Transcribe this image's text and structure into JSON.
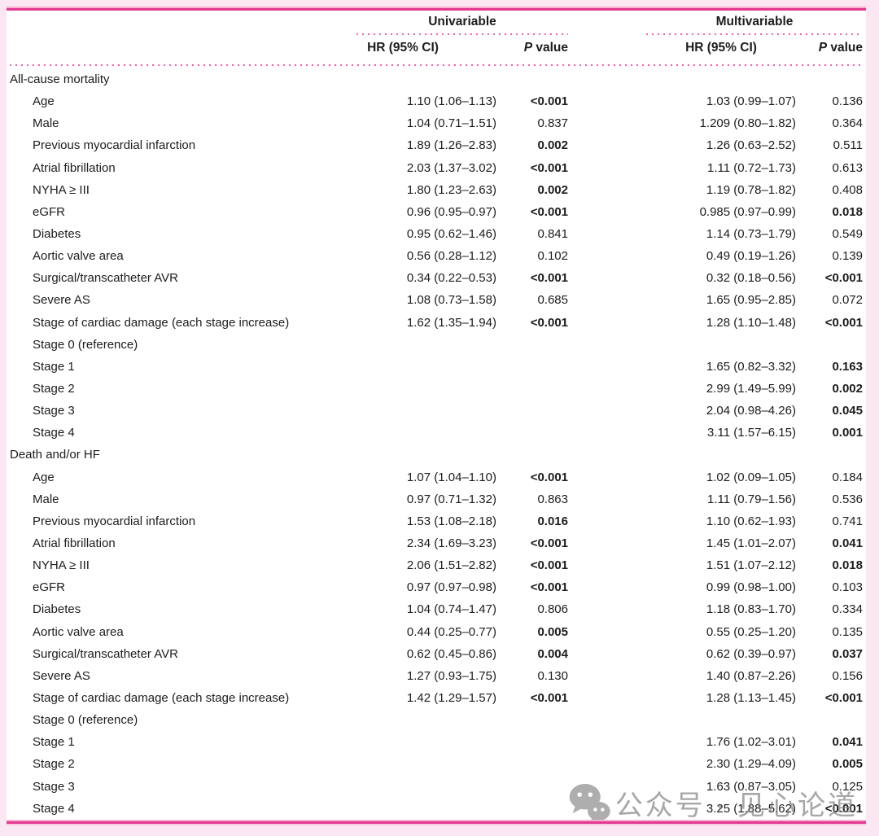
{
  "colors": {
    "accent_pink": "#e23a90",
    "dot_pink": "#f55fa9",
    "page_bg": "#fbe7f1",
    "text": "#1c1c1c",
    "watermark_gray": "#7d7d7d"
  },
  "table": {
    "group_headers": [
      "Univariable",
      "Multivariable"
    ],
    "col_headers": {
      "hr": "HR (95% CI)",
      "p_italic": "P",
      "p_rest": " value"
    },
    "sections": [
      {
        "title": "All-cause mortality",
        "rows": [
          {
            "label": "Age",
            "uni_hr": "1.10 (1.06–1.13)",
            "uni_p": "<0.001",
            "uni_p_bold": true,
            "mv_hr": "1.03 (0.99–1.07)",
            "mv_p": "0.136",
            "mv_p_bold": false
          },
          {
            "label": "Male",
            "uni_hr": "1.04 (0.71–1.51)",
            "uni_p": "0.837",
            "uni_p_bold": false,
            "mv_hr": "1.209 (0.80–1.82)",
            "mv_p": "0.364",
            "mv_p_bold": false
          },
          {
            "label": "Previous myocardial infarction",
            "uni_hr": "1.89 (1.26–2.83)",
            "uni_p": "0.002",
            "uni_p_bold": true,
            "mv_hr": "1.26 (0.63–2.52)",
            "mv_p": "0.511",
            "mv_p_bold": false
          },
          {
            "label": "Atrial fibrillation",
            "uni_hr": "2.03 (1.37–3.02)",
            "uni_p": "<0.001",
            "uni_p_bold": true,
            "mv_hr": "1.11 (0.72–1.73)",
            "mv_p": "0.613",
            "mv_p_bold": false
          },
          {
            "label": "NYHA ≥ III",
            "uni_hr": "1.80 (1.23–2.63)",
            "uni_p": "0.002",
            "uni_p_bold": true,
            "mv_hr": "1.19 (0.78–1.82)",
            "mv_p": "0.408",
            "mv_p_bold": false
          },
          {
            "label": "eGFR",
            "uni_hr": "0.96 (0.95–0.97)",
            "uni_p": "<0.001",
            "uni_p_bold": true,
            "mv_hr": "0.985 (0.97–0.99)",
            "mv_p": "0.018",
            "mv_p_bold": true
          },
          {
            "label": "Diabetes",
            "uni_hr": "0.95 (0.62–1.46)",
            "uni_p": "0.841",
            "uni_p_bold": false,
            "mv_hr": "1.14 (0.73–1.79)",
            "mv_p": "0.549",
            "mv_p_bold": false
          },
          {
            "label": "Aortic valve area",
            "uni_hr": "0.56 (0.28–1.12)",
            "uni_p": "0.102",
            "uni_p_bold": false,
            "mv_hr": "0.49 (0.19–1.26)",
            "mv_p": "0.139",
            "mv_p_bold": false
          },
          {
            "label": "Surgical/transcatheter AVR",
            "uni_hr": "0.34 (0.22–0.53)",
            "uni_p": "<0.001",
            "uni_p_bold": true,
            "mv_hr": "0.32 (0.18–0.56)",
            "mv_p": "<0.001",
            "mv_p_bold": true
          },
          {
            "label": "Severe AS",
            "uni_hr": "1.08 (0.73–1.58)",
            "uni_p": "0.685",
            "uni_p_bold": false,
            "mv_hr": "1.65 (0.95–2.85)",
            "mv_p": "0.072",
            "mv_p_bold": false
          },
          {
            "label": "Stage of cardiac damage (each stage increase)",
            "uni_hr": "1.62 (1.35–1.94)",
            "uni_p": "<0.001",
            "uni_p_bold": true,
            "mv_hr": "1.28 (1.10–1.48)",
            "mv_p": "<0.001",
            "mv_p_bold": true
          },
          {
            "label": "Stage 0 (reference)",
            "uni_hr": "",
            "uni_p": "",
            "uni_p_bold": false,
            "mv_hr": "",
            "mv_p": "",
            "mv_p_bold": false
          },
          {
            "label": "Stage 1",
            "uni_hr": "",
            "uni_p": "",
            "uni_p_bold": false,
            "mv_hr": "1.65 (0.82–3.32)",
            "mv_p": "0.163",
            "mv_p_bold": true
          },
          {
            "label": "Stage 2",
            "uni_hr": "",
            "uni_p": "",
            "uni_p_bold": false,
            "mv_hr": "2.99 (1.49–5.99)",
            "mv_p": "0.002",
            "mv_p_bold": true
          },
          {
            "label": "Stage 3",
            "uni_hr": "",
            "uni_p": "",
            "uni_p_bold": false,
            "mv_hr": "2.04 (0.98–4.26)",
            "mv_p": "0.045",
            "mv_p_bold": true
          },
          {
            "label": "Stage 4",
            "uni_hr": "",
            "uni_p": "",
            "uni_p_bold": false,
            "mv_hr": "3.11 (1.57–6.15)",
            "mv_p": "0.001",
            "mv_p_bold": true
          }
        ]
      },
      {
        "title": "Death and/or HF",
        "rows": [
          {
            "label": "Age",
            "uni_hr": "1.07 (1.04–1.10)",
            "uni_p": "<0.001",
            "uni_p_bold": true,
            "mv_hr": "1.02 (0.09–1.05)",
            "mv_p": "0.184",
            "mv_p_bold": false
          },
          {
            "label": "Male",
            "uni_hr": "0.97 (0.71–1.32)",
            "uni_p": "0.863",
            "uni_p_bold": false,
            "mv_hr": "1.11 (0.79–1.56)",
            "mv_p": "0.536",
            "mv_p_bold": false
          },
          {
            "label": "Previous myocardial infarction",
            "uni_hr": "1.53 (1.08–2.18)",
            "uni_p": "0.016",
            "uni_p_bold": true,
            "mv_hr": "1.10 (0.62–1.93)",
            "mv_p": "0.741",
            "mv_p_bold": false
          },
          {
            "label": "Atrial fibrillation",
            "uni_hr": "2.34 (1.69–3.23)",
            "uni_p": "<0.001",
            "uni_p_bold": true,
            "mv_hr": "1.45 (1.01–2.07)",
            "mv_p": "0.041",
            "mv_p_bold": true
          },
          {
            "label": "NYHA ≥ III",
            "uni_hr": "2.06 (1.51–2.82)",
            "uni_p": "<0.001",
            "uni_p_bold": true,
            "mv_hr": "1.51 (1.07–2.12)",
            "mv_p": "0.018",
            "mv_p_bold": true
          },
          {
            "label": "eGFR",
            "uni_hr": "0.97 (0.97–0.98)",
            "uni_p": "<0.001",
            "uni_p_bold": true,
            "mv_hr": "0.99 (0.98–1.00)",
            "mv_p": "0.103",
            "mv_p_bold": false
          },
          {
            "label": "Diabetes",
            "uni_hr": "1.04 (0.74–1.47)",
            "uni_p": "0.806",
            "uni_p_bold": false,
            "mv_hr": "1.18 (0.83–1.70)",
            "mv_p": "0.334",
            "mv_p_bold": false
          },
          {
            "label": "Aortic valve area",
            "uni_hr": "0.44 (0.25–0.77)",
            "uni_p": "0.005",
            "uni_p_bold": true,
            "mv_hr": "0.55 (0.25–1.20)",
            "mv_p": "0.135",
            "mv_p_bold": false
          },
          {
            "label": "Surgical/transcatheter AVR",
            "uni_hr": "0.62 (0.45–0.86)",
            "uni_p": "0.004",
            "uni_p_bold": true,
            "mv_hr": "0.62 (0.39–0.97)",
            "mv_p": "0.037",
            "mv_p_bold": true
          },
          {
            "label": "Severe AS",
            "uni_hr": "1.27 (0.93–1.75)",
            "uni_p": "0.130",
            "uni_p_bold": false,
            "mv_hr": "1.40 (0.87–2.26)",
            "mv_p": "0.156",
            "mv_p_bold": false
          },
          {
            "label": "Stage of cardiac damage (each stage increase)",
            "uni_hr": "1.42 (1.29–1.57)",
            "uni_p": "<0.001",
            "uni_p_bold": true,
            "mv_hr": "1.28 (1.13–1.45)",
            "mv_p": "<0.001",
            "mv_p_bold": true
          },
          {
            "label": "Stage 0 (reference)",
            "uni_hr": "",
            "uni_p": "",
            "uni_p_bold": false,
            "mv_hr": "",
            "mv_p": "",
            "mv_p_bold": false
          },
          {
            "label": "Stage 1",
            "uni_hr": "",
            "uni_p": "",
            "uni_p_bold": false,
            "mv_hr": "1.76 (1.02–3.01)",
            "mv_p": "0.041",
            "mv_p_bold": true
          },
          {
            "label": "Stage 2",
            "uni_hr": "",
            "uni_p": "",
            "uni_p_bold": false,
            "mv_hr": "2.30 (1.29–4.09)",
            "mv_p": "0.005",
            "mv_p_bold": true
          },
          {
            "label": "Stage 3",
            "uni_hr": "",
            "uni_p": "",
            "uni_p_bold": false,
            "mv_hr": "1.63 (0.87–3.05)",
            "mv_p": "0.125",
            "mv_p_bold": false
          },
          {
            "label": "Stage 4",
            "uni_hr": "",
            "uni_p": "",
            "uni_p_bold": false,
            "mv_hr": "3.25 (1.88–5.62)",
            "mv_p": "<0.001",
            "mv_p_bold": true
          }
        ]
      }
    ]
  },
  "watermark": {
    "text": "公众号 · 见心论道",
    "icon": "wechat-icon"
  }
}
